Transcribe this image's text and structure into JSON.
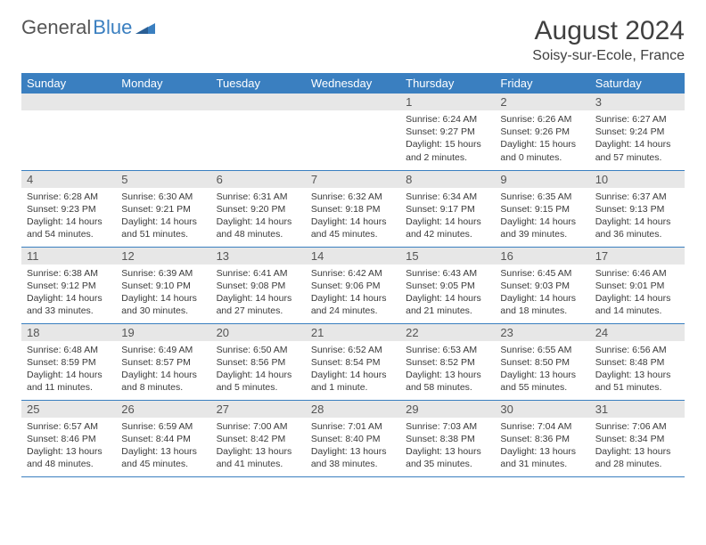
{
  "logo": {
    "text1": "General",
    "text2": "Blue"
  },
  "title": "August 2024",
  "location": "Soisy-sur-Ecole, France",
  "weekdays": [
    "Sunday",
    "Monday",
    "Tuesday",
    "Wednesday",
    "Thursday",
    "Friday",
    "Saturday"
  ],
  "colors": {
    "header_bg": "#3a7fc0",
    "header_text": "#ffffff",
    "daynum_bg": "#e7e7e7",
    "border": "#3a7fc0"
  },
  "weeks": [
    [
      null,
      null,
      null,
      null,
      {
        "n": "1",
        "sr": "6:24 AM",
        "ss": "9:27 PM",
        "dl": "15 hours and 2 minutes."
      },
      {
        "n": "2",
        "sr": "6:26 AM",
        "ss": "9:26 PM",
        "dl": "15 hours and 0 minutes."
      },
      {
        "n": "3",
        "sr": "6:27 AM",
        "ss": "9:24 PM",
        "dl": "14 hours and 57 minutes."
      }
    ],
    [
      {
        "n": "4",
        "sr": "6:28 AM",
        "ss": "9:23 PM",
        "dl": "14 hours and 54 minutes."
      },
      {
        "n": "5",
        "sr": "6:30 AM",
        "ss": "9:21 PM",
        "dl": "14 hours and 51 minutes."
      },
      {
        "n": "6",
        "sr": "6:31 AM",
        "ss": "9:20 PM",
        "dl": "14 hours and 48 minutes."
      },
      {
        "n": "7",
        "sr": "6:32 AM",
        "ss": "9:18 PM",
        "dl": "14 hours and 45 minutes."
      },
      {
        "n": "8",
        "sr": "6:34 AM",
        "ss": "9:17 PM",
        "dl": "14 hours and 42 minutes."
      },
      {
        "n": "9",
        "sr": "6:35 AM",
        "ss": "9:15 PM",
        "dl": "14 hours and 39 minutes."
      },
      {
        "n": "10",
        "sr": "6:37 AM",
        "ss": "9:13 PM",
        "dl": "14 hours and 36 minutes."
      }
    ],
    [
      {
        "n": "11",
        "sr": "6:38 AM",
        "ss": "9:12 PM",
        "dl": "14 hours and 33 minutes."
      },
      {
        "n": "12",
        "sr": "6:39 AM",
        "ss": "9:10 PM",
        "dl": "14 hours and 30 minutes."
      },
      {
        "n": "13",
        "sr": "6:41 AM",
        "ss": "9:08 PM",
        "dl": "14 hours and 27 minutes."
      },
      {
        "n": "14",
        "sr": "6:42 AM",
        "ss": "9:06 PM",
        "dl": "14 hours and 24 minutes."
      },
      {
        "n": "15",
        "sr": "6:43 AM",
        "ss": "9:05 PM",
        "dl": "14 hours and 21 minutes."
      },
      {
        "n": "16",
        "sr": "6:45 AM",
        "ss": "9:03 PM",
        "dl": "14 hours and 18 minutes."
      },
      {
        "n": "17",
        "sr": "6:46 AM",
        "ss": "9:01 PM",
        "dl": "14 hours and 14 minutes."
      }
    ],
    [
      {
        "n": "18",
        "sr": "6:48 AM",
        "ss": "8:59 PM",
        "dl": "14 hours and 11 minutes."
      },
      {
        "n": "19",
        "sr": "6:49 AM",
        "ss": "8:57 PM",
        "dl": "14 hours and 8 minutes."
      },
      {
        "n": "20",
        "sr": "6:50 AM",
        "ss": "8:56 PM",
        "dl": "14 hours and 5 minutes."
      },
      {
        "n": "21",
        "sr": "6:52 AM",
        "ss": "8:54 PM",
        "dl": "14 hours and 1 minute."
      },
      {
        "n": "22",
        "sr": "6:53 AM",
        "ss": "8:52 PM",
        "dl": "13 hours and 58 minutes."
      },
      {
        "n": "23",
        "sr": "6:55 AM",
        "ss": "8:50 PM",
        "dl": "13 hours and 55 minutes."
      },
      {
        "n": "24",
        "sr": "6:56 AM",
        "ss": "8:48 PM",
        "dl": "13 hours and 51 minutes."
      }
    ],
    [
      {
        "n": "25",
        "sr": "6:57 AM",
        "ss": "8:46 PM",
        "dl": "13 hours and 48 minutes."
      },
      {
        "n": "26",
        "sr": "6:59 AM",
        "ss": "8:44 PM",
        "dl": "13 hours and 45 minutes."
      },
      {
        "n": "27",
        "sr": "7:00 AM",
        "ss": "8:42 PM",
        "dl": "13 hours and 41 minutes."
      },
      {
        "n": "28",
        "sr": "7:01 AM",
        "ss": "8:40 PM",
        "dl": "13 hours and 38 minutes."
      },
      {
        "n": "29",
        "sr": "7:03 AM",
        "ss": "8:38 PM",
        "dl": "13 hours and 35 minutes."
      },
      {
        "n": "30",
        "sr": "7:04 AM",
        "ss": "8:36 PM",
        "dl": "13 hours and 31 minutes."
      },
      {
        "n": "31",
        "sr": "7:06 AM",
        "ss": "8:34 PM",
        "dl": "13 hours and 28 minutes."
      }
    ]
  ],
  "labels": {
    "sunrise": "Sunrise: ",
    "sunset": "Sunset: ",
    "daylight": "Daylight: "
  }
}
